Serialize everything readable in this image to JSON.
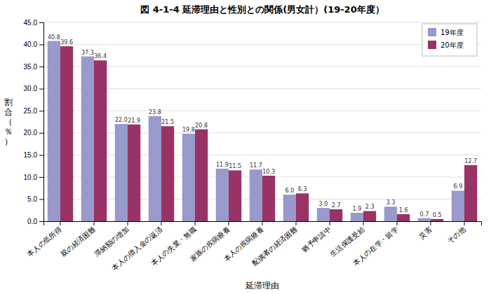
{
  "chart_data": {
    "type": "bar",
    "title": "図 4-1-4 延滞理由と性別との関係(男女計）(19-20年度）",
    "xlabel": "延滞理由",
    "ylabel": "割合（％）",
    "categories": [
      "本人の低所得",
      "親の経済困難",
      "滞納額の増加",
      "本人の借入金の返済",
      "本人の失業・無職",
      "家族の疾病療養",
      "本人の疾病療養",
      "配偶者の経済困難",
      "猶予申請中",
      "生活保護受給",
      "本人の在学・留学",
      "災害",
      "その他"
    ],
    "series": [
      {
        "name": "19年度",
        "color": "#9999cc",
        "values": [
          40.8,
          37.3,
          22.0,
          23.8,
          19.8,
          11.9,
          11.7,
          6.0,
          3.0,
          1.9,
          3.3,
          0.7,
          6.9
        ],
        "value_labels": [
          "40.8",
          "37.3",
          "22.0",
          "23.8",
          "19.8",
          "11.9",
          "11.7",
          "6.0",
          "3.0",
          "1.9",
          "3.3",
          "0.7",
          "6.9"
        ]
      },
      {
        "name": "20年度",
        "color": "#993366",
        "values": [
          39.6,
          36.4,
          21.9,
          21.5,
          20.8,
          11.5,
          10.3,
          6.3,
          2.7,
          2.3,
          1.6,
          0.5,
          12.7
        ],
        "value_labels": [
          "39.6",
          "36.4",
          "21.9",
          "21.5",
          "20.8",
          "11.5",
          "10.3",
          "6.3",
          "2.7",
          "2.3",
          "1.6",
          "0.5",
          "12.7"
        ]
      }
    ],
    "ylim": [
      0,
      45
    ],
    "yticks": [
      {
        "value": 0,
        "label": "0.0"
      },
      {
        "value": 5,
        "label": "5.0"
      },
      {
        "value": 10,
        "label": "10.0"
      },
      {
        "value": 15,
        "label": "15.0"
      },
      {
        "value": 20,
        "label": "20.0"
      },
      {
        "value": 25,
        "label": "25.0"
      },
      {
        "value": 30,
        "label": "30.0"
      },
      {
        "value": 35,
        "label": "35.0"
      },
      {
        "value": 40,
        "label": "40.0"
      },
      {
        "value": 45,
        "label": "45.0"
      }
    ],
    "grid": true,
    "legend": "upper right",
    "data_labels": true
  }
}
